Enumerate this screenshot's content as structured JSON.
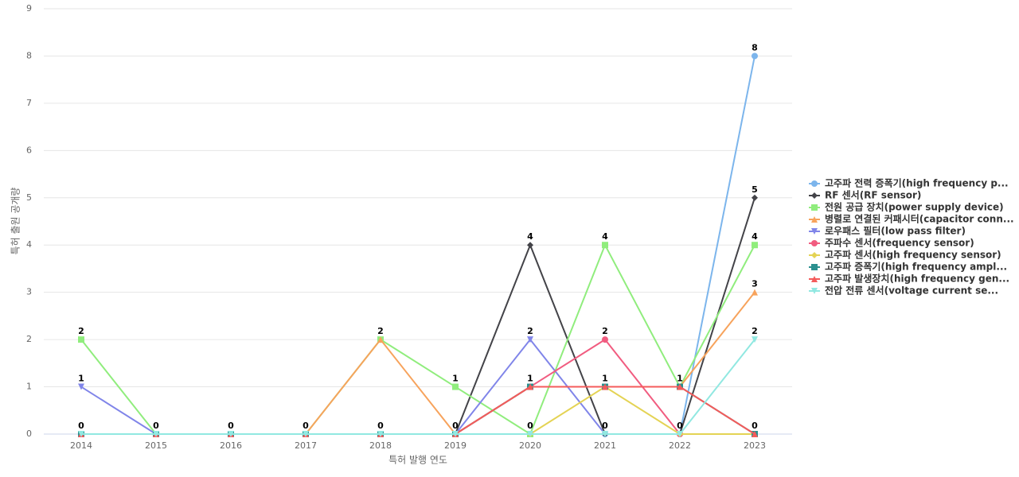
{
  "chart_data": {
    "type": "line",
    "x_label": "특허 발행 연도",
    "y_label": "특허 출원 공개량",
    "categories": [
      "2014",
      "2015",
      "2016",
      "2017",
      "2018",
      "2019",
      "2020",
      "2021",
      "2022",
      "2023"
    ],
    "ylim": [
      0,
      9
    ],
    "yticks": [
      0,
      1,
      2,
      3,
      4,
      5,
      6,
      7,
      8,
      9
    ],
    "grid": true,
    "legend": "right",
    "series": [
      {
        "name": "고주파 전력 증폭기(high frequency p...",
        "color": "#7cb5ec",
        "marker": "circle",
        "values": [
          0,
          0,
          0,
          0,
          0,
          0,
          0,
          0,
          0,
          8
        ]
      },
      {
        "name": "RF 센서(RF sensor)",
        "color": "#434348",
        "marker": "diamond",
        "values": [
          0,
          0,
          0,
          0,
          0,
          0,
          4,
          0,
          0,
          5
        ]
      },
      {
        "name": "전원 공급 장치(power supply device)",
        "color": "#90ed7d",
        "marker": "square",
        "values": [
          2,
          0,
          0,
          0,
          2,
          1,
          0,
          4,
          1,
          4
        ]
      },
      {
        "name": "병렬로 연결된 커패시터(capacitor conn...",
        "color": "#f7a35c",
        "marker": "triangle",
        "values": [
          0,
          0,
          0,
          0,
          2,
          0,
          1,
          1,
          1,
          3
        ]
      },
      {
        "name": "로우패스 필터(low pass filter)",
        "color": "#8085e9",
        "marker": "triangle-down",
        "values": [
          1,
          0,
          0,
          0,
          0,
          0,
          2,
          0,
          0,
          0
        ]
      },
      {
        "name": "주파수 센서(frequency sensor)",
        "color": "#f15c80",
        "marker": "circle",
        "values": [
          0,
          0,
          0,
          0,
          0,
          0,
          1,
          2,
          0,
          0
        ]
      },
      {
        "name": "고주파 센서(high frequency sensor)",
        "color": "#e4d354",
        "marker": "diamond",
        "values": [
          0,
          0,
          0,
          0,
          0,
          0,
          0,
          1,
          0,
          0
        ]
      },
      {
        "name": "고주파 증폭기(high frequency ampl...",
        "color": "#2b908f",
        "marker": "square",
        "values": [
          0,
          0,
          0,
          0,
          0,
          0,
          1,
          1,
          1,
          0
        ]
      },
      {
        "name": "고주파 발생장치(high frequency gen...",
        "color": "#f45b5b",
        "marker": "triangle",
        "values": [
          0,
          0,
          0,
          0,
          0,
          0,
          1,
          1,
          1,
          0
        ]
      },
      {
        "name": "전압 전류 센서(voltage current se...",
        "color": "#91e8e1",
        "marker": "triangle-down",
        "values": [
          0,
          0,
          0,
          0,
          0,
          0,
          0,
          0,
          0,
          2
        ]
      }
    ]
  }
}
